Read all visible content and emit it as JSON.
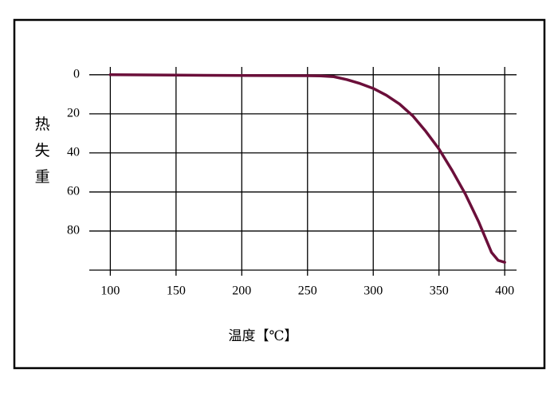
{
  "chart_data": {
    "type": "line",
    "y_label": "热失重",
    "x_label": "温度【℃】",
    "x": [
      100,
      150,
      200,
      250,
      260,
      270,
      280,
      290,
      300,
      310,
      320,
      330,
      340,
      350,
      360,
      370,
      380,
      385,
      390,
      395,
      400
    ],
    "series": [
      {
        "color": "#6b0f3a",
        "values": [
          0,
          0.2,
          0.4,
          0.5,
          0.6,
          1.0,
          2.5,
          4.5,
          7,
          10.5,
          15,
          21,
          29,
          38,
          49,
          61,
          75,
          83,
          91,
          95,
          96
        ]
      }
    ],
    "xlim": [
      84,
      409
    ],
    "xticks": [
      100,
      150,
      200,
      250,
      300,
      350,
      400
    ],
    "ylim": [
      -4,
      100
    ],
    "yticks": [
      0,
      20,
      40,
      60,
      80
    ],
    "y_inverted": true,
    "grid": true
  }
}
